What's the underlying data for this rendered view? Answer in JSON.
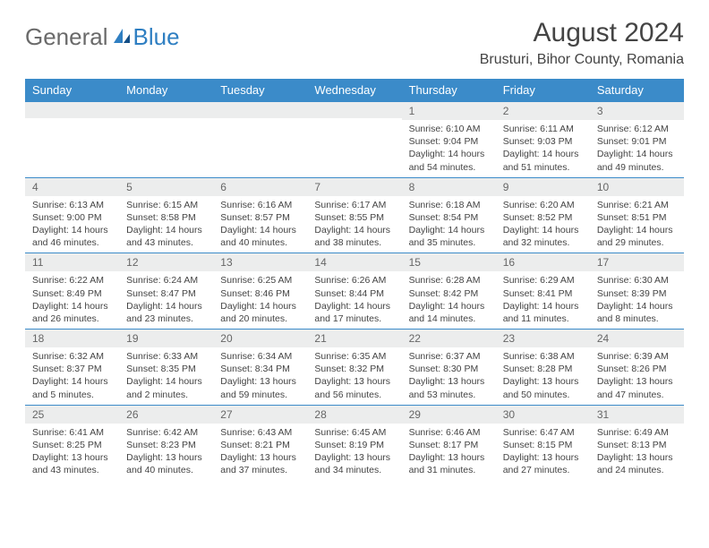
{
  "logo": {
    "part1": "General",
    "part2": "Blue"
  },
  "header": {
    "title": "August 2024",
    "subtitle": "Brusturi, Bihor County, Romania"
  },
  "colors": {
    "header_bg": "#3b8bc9",
    "header_text": "#ffffff",
    "daynum_bg": "#eceded",
    "border": "#3b8bc9",
    "logo_gray": "#6a6a6a",
    "logo_blue": "#2f7fc2"
  },
  "weekdays": [
    "Sunday",
    "Monday",
    "Tuesday",
    "Wednesday",
    "Thursday",
    "Friday",
    "Saturday"
  ],
  "weeks": [
    [
      null,
      null,
      null,
      null,
      {
        "n": "1",
        "sr": "6:10 AM",
        "ss": "9:04 PM",
        "dl": "14 hours and 54 minutes."
      },
      {
        "n": "2",
        "sr": "6:11 AM",
        "ss": "9:03 PM",
        "dl": "14 hours and 51 minutes."
      },
      {
        "n": "3",
        "sr": "6:12 AM",
        "ss": "9:01 PM",
        "dl": "14 hours and 49 minutes."
      }
    ],
    [
      {
        "n": "4",
        "sr": "6:13 AM",
        "ss": "9:00 PM",
        "dl": "14 hours and 46 minutes."
      },
      {
        "n": "5",
        "sr": "6:15 AM",
        "ss": "8:58 PM",
        "dl": "14 hours and 43 minutes."
      },
      {
        "n": "6",
        "sr": "6:16 AM",
        "ss": "8:57 PM",
        "dl": "14 hours and 40 minutes."
      },
      {
        "n": "7",
        "sr": "6:17 AM",
        "ss": "8:55 PM",
        "dl": "14 hours and 38 minutes."
      },
      {
        "n": "8",
        "sr": "6:18 AM",
        "ss": "8:54 PM",
        "dl": "14 hours and 35 minutes."
      },
      {
        "n": "9",
        "sr": "6:20 AM",
        "ss": "8:52 PM",
        "dl": "14 hours and 32 minutes."
      },
      {
        "n": "10",
        "sr": "6:21 AM",
        "ss": "8:51 PM",
        "dl": "14 hours and 29 minutes."
      }
    ],
    [
      {
        "n": "11",
        "sr": "6:22 AM",
        "ss": "8:49 PM",
        "dl": "14 hours and 26 minutes."
      },
      {
        "n": "12",
        "sr": "6:24 AM",
        "ss": "8:47 PM",
        "dl": "14 hours and 23 minutes."
      },
      {
        "n": "13",
        "sr": "6:25 AM",
        "ss": "8:46 PM",
        "dl": "14 hours and 20 minutes."
      },
      {
        "n": "14",
        "sr": "6:26 AM",
        "ss": "8:44 PM",
        "dl": "14 hours and 17 minutes."
      },
      {
        "n": "15",
        "sr": "6:28 AM",
        "ss": "8:42 PM",
        "dl": "14 hours and 14 minutes."
      },
      {
        "n": "16",
        "sr": "6:29 AM",
        "ss": "8:41 PM",
        "dl": "14 hours and 11 minutes."
      },
      {
        "n": "17",
        "sr": "6:30 AM",
        "ss": "8:39 PM",
        "dl": "14 hours and 8 minutes."
      }
    ],
    [
      {
        "n": "18",
        "sr": "6:32 AM",
        "ss": "8:37 PM",
        "dl": "14 hours and 5 minutes."
      },
      {
        "n": "19",
        "sr": "6:33 AM",
        "ss": "8:35 PM",
        "dl": "14 hours and 2 minutes."
      },
      {
        "n": "20",
        "sr": "6:34 AM",
        "ss": "8:34 PM",
        "dl": "13 hours and 59 minutes."
      },
      {
        "n": "21",
        "sr": "6:35 AM",
        "ss": "8:32 PM",
        "dl": "13 hours and 56 minutes."
      },
      {
        "n": "22",
        "sr": "6:37 AM",
        "ss": "8:30 PM",
        "dl": "13 hours and 53 minutes."
      },
      {
        "n": "23",
        "sr": "6:38 AM",
        "ss": "8:28 PM",
        "dl": "13 hours and 50 minutes."
      },
      {
        "n": "24",
        "sr": "6:39 AM",
        "ss": "8:26 PM",
        "dl": "13 hours and 47 minutes."
      }
    ],
    [
      {
        "n": "25",
        "sr": "6:41 AM",
        "ss": "8:25 PM",
        "dl": "13 hours and 43 minutes."
      },
      {
        "n": "26",
        "sr": "6:42 AM",
        "ss": "8:23 PM",
        "dl": "13 hours and 40 minutes."
      },
      {
        "n": "27",
        "sr": "6:43 AM",
        "ss": "8:21 PM",
        "dl": "13 hours and 37 minutes."
      },
      {
        "n": "28",
        "sr": "6:45 AM",
        "ss": "8:19 PM",
        "dl": "13 hours and 34 minutes."
      },
      {
        "n": "29",
        "sr": "6:46 AM",
        "ss": "8:17 PM",
        "dl": "13 hours and 31 minutes."
      },
      {
        "n": "30",
        "sr": "6:47 AM",
        "ss": "8:15 PM",
        "dl": "13 hours and 27 minutes."
      },
      {
        "n": "31",
        "sr": "6:49 AM",
        "ss": "8:13 PM",
        "dl": "13 hours and 24 minutes."
      }
    ]
  ],
  "labels": {
    "sunrise": "Sunrise:",
    "sunset": "Sunset:",
    "daylight": "Daylight:"
  }
}
